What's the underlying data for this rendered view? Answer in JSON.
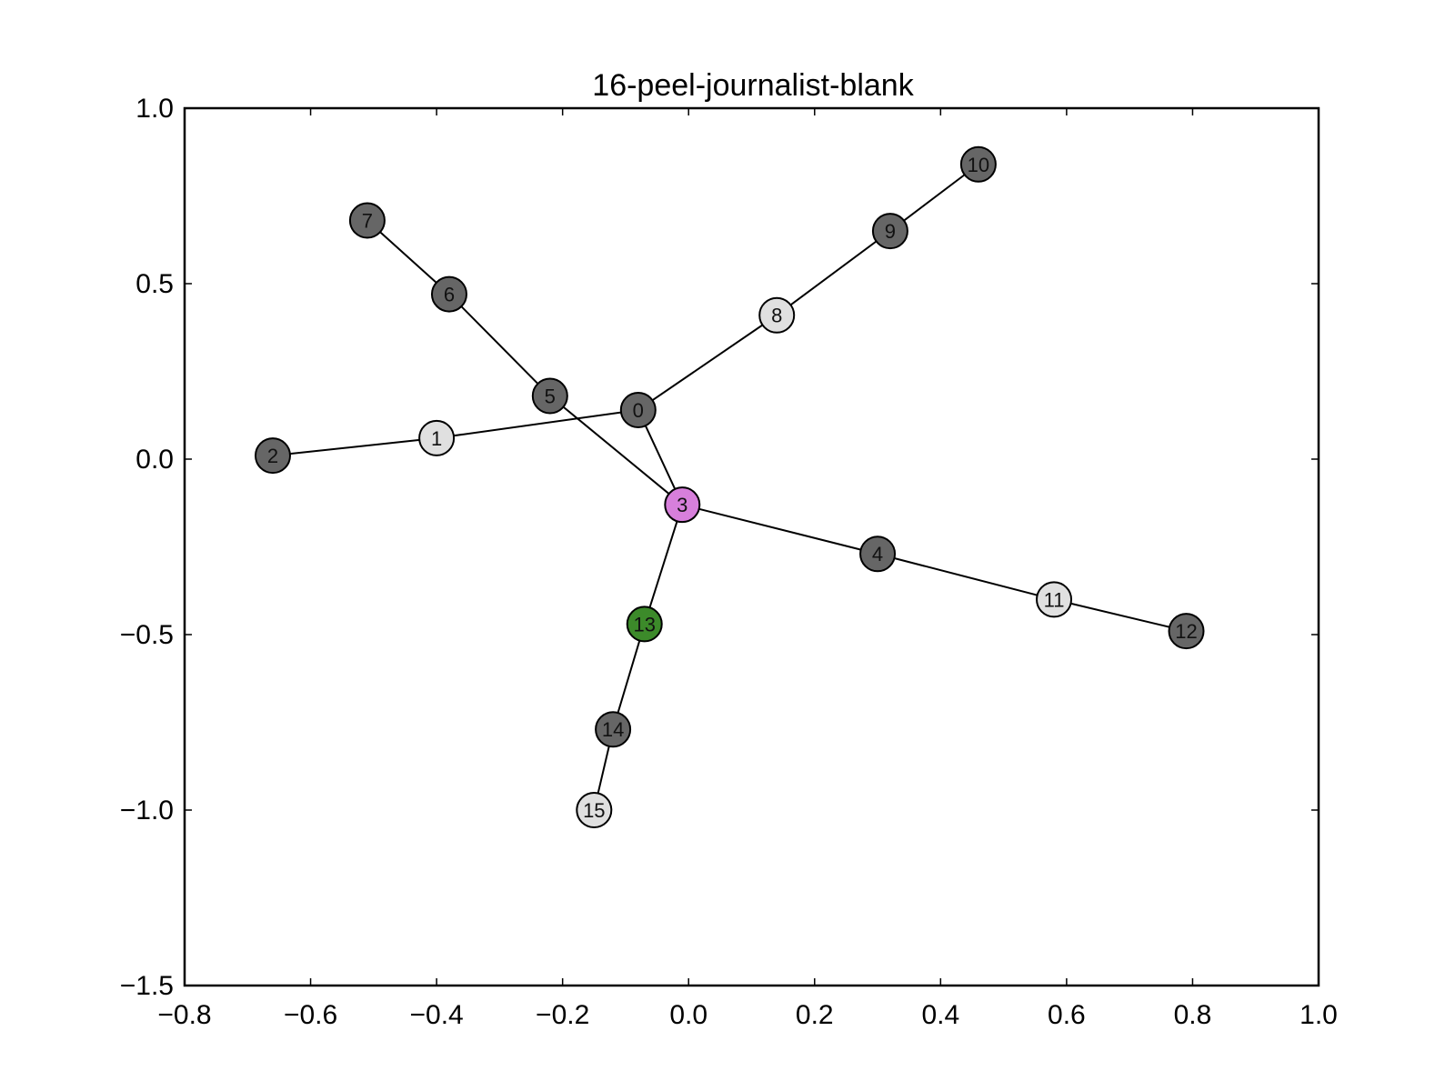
{
  "chart_data": {
    "type": "network",
    "title": "16-peel-journalist-blank",
    "xlabel": "",
    "ylabel": "",
    "xlim": [
      -0.8,
      1.0
    ],
    "ylim": [
      -1.5,
      1.0
    ],
    "x_ticks": [
      -0.8,
      -0.6,
      -0.4,
      -0.2,
      0.0,
      0.2,
      0.4,
      0.6,
      0.8,
      1.0
    ],
    "y_ticks": [
      1.0,
      0.5,
      0.0,
      -0.5,
      -1.0,
      -1.5
    ],
    "x_tick_labels": [
      "−0.8",
      "−0.6",
      "−0.4",
      "−0.2",
      "0.0",
      "0.2",
      "0.4",
      "0.6",
      "0.8",
      "1.0"
    ],
    "y_tick_labels": [
      "1.0",
      "0.5",
      "0.0",
      "−0.5",
      "−1.0",
      "−1.5"
    ],
    "grid": false,
    "colors": {
      "dark": "#666666",
      "light": "#e0e0e0",
      "pink": "#d77fdb",
      "green": "#3c8a2a"
    },
    "nodes": [
      {
        "id": "0",
        "x": -0.08,
        "y": 0.14,
        "color": "dark"
      },
      {
        "id": "1",
        "x": -0.4,
        "y": 0.06,
        "color": "light"
      },
      {
        "id": "2",
        "x": -0.66,
        "y": 0.01,
        "color": "dark"
      },
      {
        "id": "3",
        "x": -0.01,
        "y": -0.13,
        "color": "pink"
      },
      {
        "id": "4",
        "x": 0.3,
        "y": -0.27,
        "color": "dark"
      },
      {
        "id": "5",
        "x": -0.22,
        "y": 0.18,
        "color": "dark"
      },
      {
        "id": "6",
        "x": -0.38,
        "y": 0.47,
        "color": "dark"
      },
      {
        "id": "7",
        "x": -0.51,
        "y": 0.68,
        "color": "dark"
      },
      {
        "id": "8",
        "x": 0.14,
        "y": 0.41,
        "color": "light"
      },
      {
        "id": "9",
        "x": 0.32,
        "y": 0.65,
        "color": "dark"
      },
      {
        "id": "10",
        "x": 0.46,
        "y": 0.84,
        "color": "dark"
      },
      {
        "id": "11",
        "x": 0.58,
        "y": -0.4,
        "color": "light"
      },
      {
        "id": "12",
        "x": 0.79,
        "y": -0.49,
        "color": "dark"
      },
      {
        "id": "13",
        "x": -0.07,
        "y": -0.47,
        "color": "green"
      },
      {
        "id": "14",
        "x": -0.12,
        "y": -0.77,
        "color": "dark"
      },
      {
        "id": "15",
        "x": -0.15,
        "y": -1.0,
        "color": "light"
      }
    ],
    "edges": [
      [
        "2",
        "1"
      ],
      [
        "1",
        "0"
      ],
      [
        "0",
        "8"
      ],
      [
        "8",
        "9"
      ],
      [
        "9",
        "10"
      ],
      [
        "0",
        "3"
      ],
      [
        "7",
        "6"
      ],
      [
        "6",
        "5"
      ],
      [
        "5",
        "3"
      ],
      [
        "3",
        "4"
      ],
      [
        "4",
        "11"
      ],
      [
        "11",
        "12"
      ],
      [
        "3",
        "13"
      ],
      [
        "13",
        "14"
      ],
      [
        "14",
        "15"
      ]
    ]
  }
}
